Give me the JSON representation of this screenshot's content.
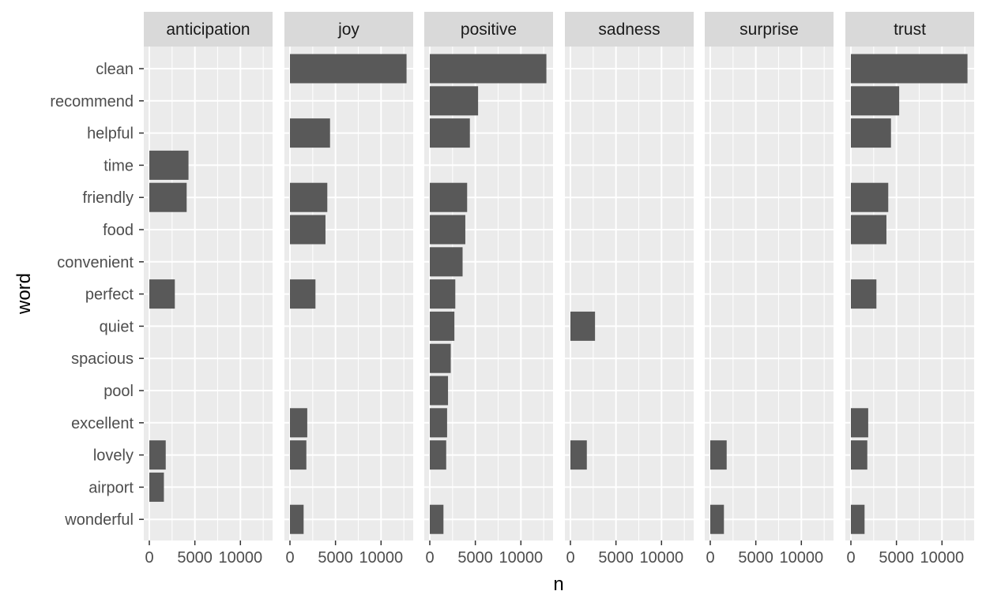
{
  "chart_data": {
    "type": "bar",
    "orientation": "horizontal",
    "facet": "sentiment",
    "xlabel": "n",
    "ylabel": "word",
    "xlim": [
      0,
      13500
    ],
    "x_ticks": [
      0,
      5000,
      10000
    ],
    "x_tick_labels": [
      "0",
      "5000",
      "10000"
    ],
    "grid": true,
    "words": [
      "clean",
      "recommend",
      "helpful",
      "time",
      "friendly",
      "food",
      "convenient",
      "perfect",
      "quiet",
      "spacious",
      "pool",
      "excellent",
      "lovely",
      "airport",
      "wonderful"
    ],
    "panels": [
      {
        "name": "anticipation",
        "values": {
          "time": 4300,
          "friendly": 4100,
          "perfect": 2800,
          "lovely": 1800,
          "airport": 1600
        }
      },
      {
        "name": "joy",
        "values": {
          "clean": 12800,
          "helpful": 4400,
          "friendly": 4100,
          "food": 3900,
          "perfect": 2800,
          "excellent": 1900,
          "lovely": 1800,
          "wonderful": 1500
        }
      },
      {
        "name": "positive",
        "values": {
          "clean": 12800,
          "recommend": 5300,
          "helpful": 4400,
          "friendly": 4100,
          "food": 3900,
          "convenient": 3600,
          "perfect": 2800,
          "quiet": 2700,
          "spacious": 2300,
          "pool": 2000,
          "excellent": 1900,
          "lovely": 1800,
          "wonderful": 1500
        }
      },
      {
        "name": "sadness",
        "values": {
          "quiet": 2700,
          "lovely": 1800
        }
      },
      {
        "name": "surprise",
        "values": {
          "lovely": 1800,
          "wonderful": 1500
        }
      },
      {
        "name": "trust",
        "values": {
          "clean": 12800,
          "recommend": 5300,
          "helpful": 4400,
          "friendly": 4100,
          "food": 3900,
          "perfect": 2800,
          "excellent": 1900,
          "lovely": 1800,
          "wonderful": 1500
        }
      }
    ]
  },
  "colors": {
    "bar": "#595959",
    "panel_background": "#ebebeb",
    "strip_background": "#d9d9d9",
    "grid": "#ffffff"
  }
}
